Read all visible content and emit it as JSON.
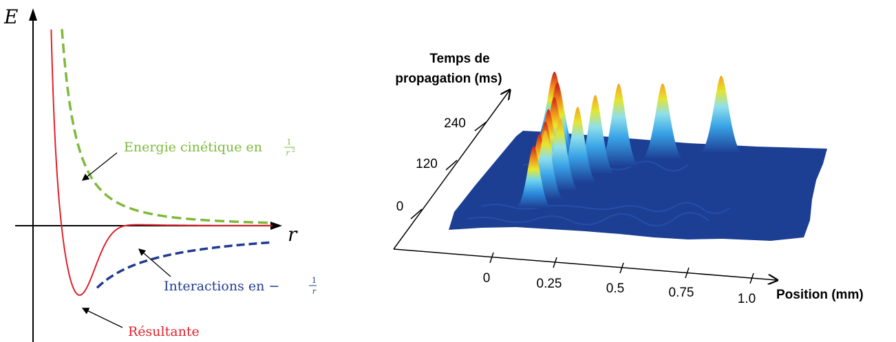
{
  "chart_data": [
    {
      "type": "line",
      "axes": {
        "x_label": "r",
        "y_label": "E"
      },
      "series": [
        {
          "key": "kinetic",
          "style": "dashed",
          "color": "#7dba3a"
        },
        {
          "key": "interaction",
          "style": "dashed",
          "color": "#1f3a8f"
        },
        {
          "key": "resultant",
          "style": "solid",
          "color": "#e0202a"
        }
      ],
      "annotations": {
        "kinetic_prefix": "Energie cinétique en ",
        "kinetic_num": "1",
        "kinetic_den": "r",
        "kinetic_exp": "2",
        "interaction_prefix": "Interactions en −",
        "interaction_num": "1",
        "interaction_den": "r",
        "resultant": "Résultante"
      }
    },
    {
      "type": "surface",
      "z_axis": {
        "title_line1": "Temps de",
        "title_line2": "propagation (ms)",
        "ticks": [
          "0",
          "120",
          "240"
        ]
      },
      "x_axis": {
        "title": "Position (mm)",
        "ticks": [
          "0",
          "0.25",
          "0.5",
          "0.75",
          "1.0"
        ]
      },
      "peak_rows": [
        {
          "row_time_ms": 0,
          "peak_positions_mm": [
            0.1
          ]
        },
        {
          "row_time_ms": 40,
          "peak_positions_mm": [
            0.1,
            0.12
          ]
        },
        {
          "row_time_ms": 80,
          "peak_positions_mm": [
            0.1,
            0.15
          ]
        },
        {
          "row_time_ms": 120,
          "peak_positions_mm": [
            0.09,
            0.19
          ]
        },
        {
          "row_time_ms": 160,
          "peak_positions_mm": [
            0.09,
            0.23
          ]
        },
        {
          "row_time_ms": 200,
          "peak_positions_mm": [
            0.08,
            0.29
          ]
        },
        {
          "row_time_ms": 240,
          "peak_positions_mm": [
            0.06,
            0.42
          ]
        },
        {
          "row_time_ms": 280,
          "peak_positions_mm": [
            0.03,
            0.6
          ]
        }
      ],
      "surface_color": "#1c3f94"
    }
  ]
}
